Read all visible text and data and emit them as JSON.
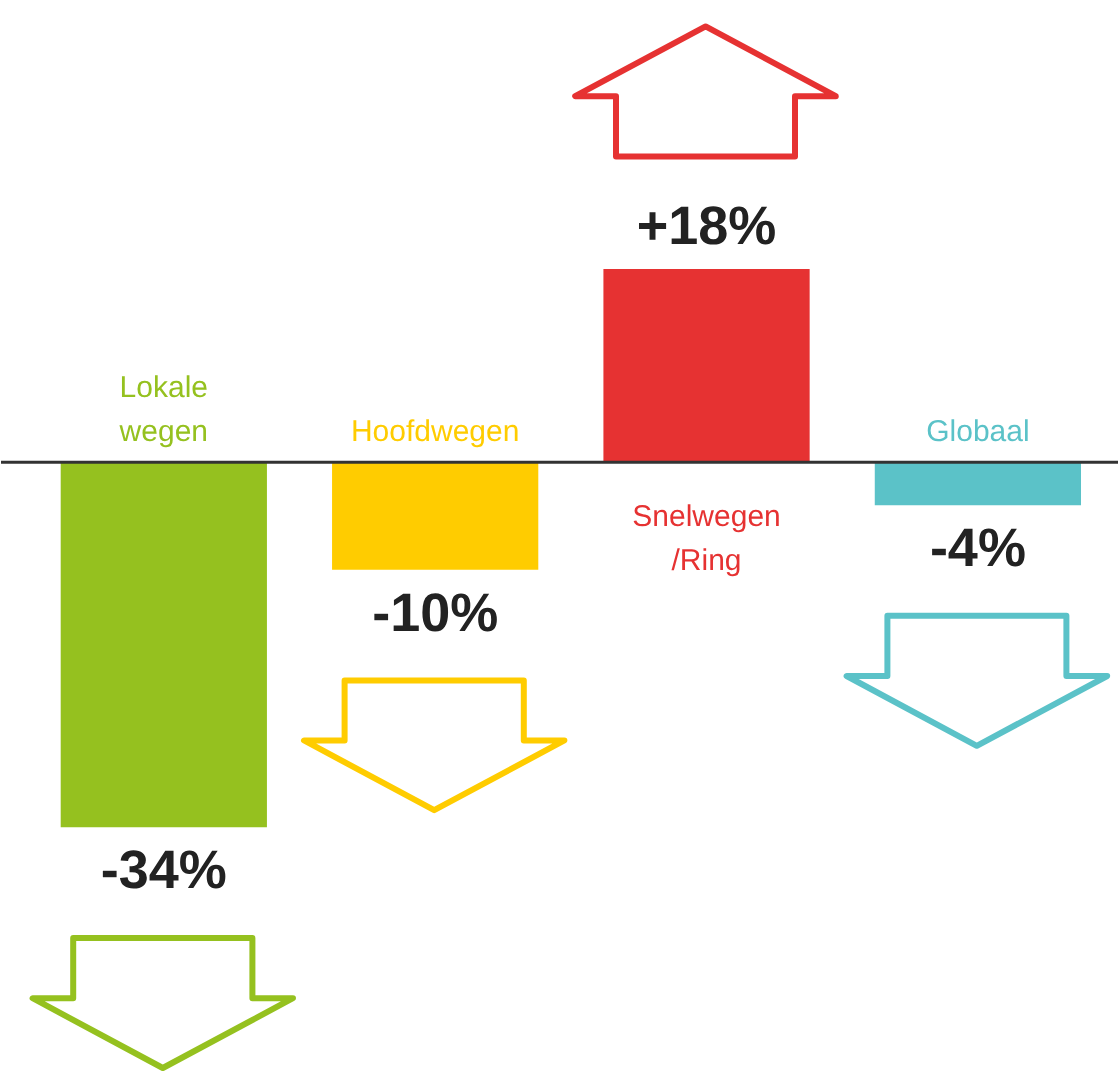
{
  "chart_data": {
    "type": "bar",
    "categories": [
      "Lokale wegen",
      "Hoofdwegen",
      "Snelwegen /Ring",
      "Globaal"
    ],
    "values": [
      -34,
      -10,
      18,
      -4
    ],
    "colors": [
      "#95c11f",
      "#ffcc00",
      "#e63232",
      "#5bc2c8"
    ],
    "value_labels": [
      "-34%",
      "-10%",
      "+18%",
      "-4%"
    ],
    "relative": false
  }
}
